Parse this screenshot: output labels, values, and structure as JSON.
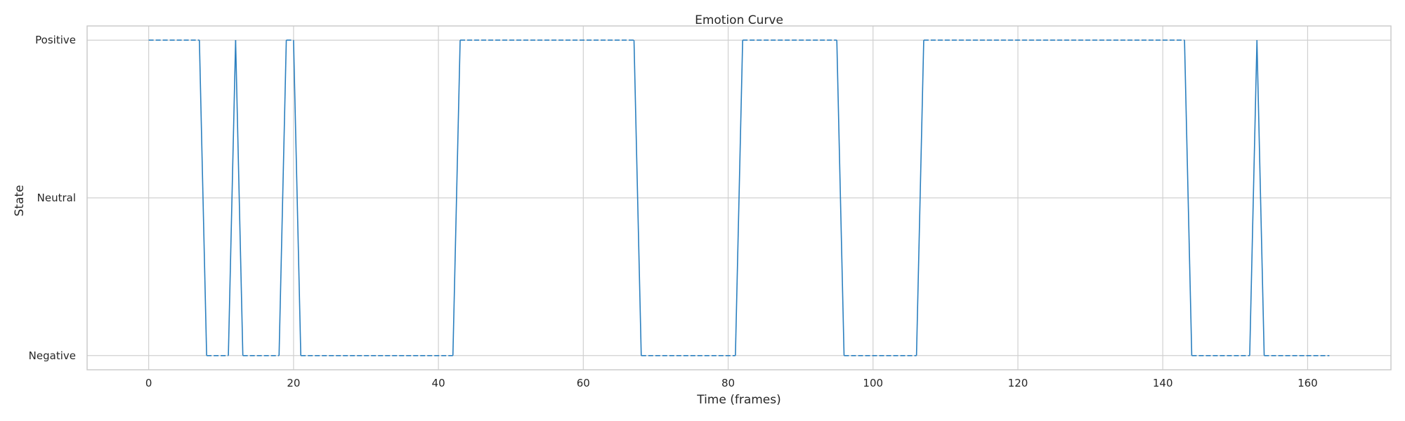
{
  "chart_data": {
    "type": "line",
    "title": "Emotion Curve",
    "xlabel": "Time (frames)",
    "ylabel": "State",
    "xlim": [
      -8.5,
      171.5
    ],
    "ylim": [
      -0.09,
      2.09
    ],
    "x_ticks": [
      0,
      20,
      40,
      60,
      80,
      100,
      120,
      140,
      160
    ],
    "x_tick_labels": [
      "0",
      "20",
      "40",
      "60",
      "80",
      "100",
      "120",
      "140",
      "160"
    ],
    "y_ticks": [
      0,
      1,
      2
    ],
    "y_tick_labels": [
      "Negative",
      "Neutral",
      "Positive"
    ],
    "grid": true,
    "colors": {
      "line": "#2a7fbf",
      "grid": "#d0d0d0",
      "spine": "#c8c8c8"
    },
    "segments": [
      {
        "x_start": 0,
        "x_end": 7,
        "state": 2
      },
      {
        "x_start": 8,
        "x_end": 11,
        "state": 0
      },
      {
        "x_start": 12,
        "x_end": 12,
        "state": 2
      },
      {
        "x_start": 13,
        "x_end": 18,
        "state": 0
      },
      {
        "x_start": 19,
        "x_end": 20,
        "state": 2
      },
      {
        "x_start": 21,
        "x_end": 42,
        "state": 0
      },
      {
        "x_start": 43,
        "x_end": 67,
        "state": 2
      },
      {
        "x_start": 68,
        "x_end": 81,
        "state": 0
      },
      {
        "x_start": 82,
        "x_end": 95,
        "state": 2
      },
      {
        "x_start": 96,
        "x_end": 106,
        "state": 0
      },
      {
        "x_start": 107,
        "x_end": 143,
        "state": 2
      },
      {
        "x_start": 144,
        "x_end": 152,
        "state": 0
      },
      {
        "x_start": 153,
        "x_end": 153,
        "state": 2
      },
      {
        "x_start": 154,
        "x_end": 163,
        "state": 0
      }
    ]
  }
}
